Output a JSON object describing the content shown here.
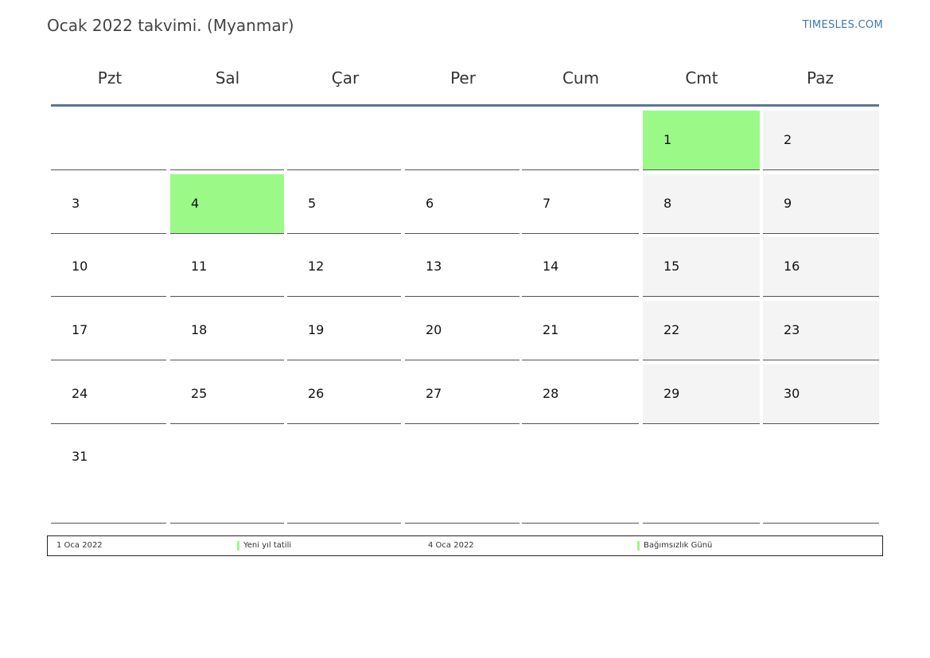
{
  "header": {
    "title": "Ocak 2022 takvimi. (Myanmar)",
    "brand": "TIMESLES.COM"
  },
  "colors": {
    "holiday": "#9bfa87",
    "weekend": "#f4f4f4",
    "header_rule": "#5b7596",
    "brand": "#3a78b5"
  },
  "weekdays": [
    "Pzt",
    "Sal",
    "Çar",
    "Per",
    "Cum",
    "Cmt",
    "Paz"
  ],
  "weeks": [
    [
      "",
      "",
      "",
      "",
      "",
      "1",
      "2"
    ],
    [
      "3",
      "4",
      "5",
      "6",
      "7",
      "8",
      "9"
    ],
    [
      "10",
      "11",
      "12",
      "13",
      "14",
      "15",
      "16"
    ],
    [
      "17",
      "18",
      "19",
      "20",
      "21",
      "22",
      "23"
    ],
    [
      "24",
      "25",
      "26",
      "27",
      "28",
      "29",
      "30"
    ],
    [
      "31",
      "",
      "",
      "",
      "",
      "",
      ""
    ]
  ],
  "holiday_days": [
    "1",
    "4"
  ],
  "legend": [
    {
      "date": "1 Oca 2022",
      "name": "Yeni yıl tatili"
    },
    {
      "date": "4 Oca 2022",
      "name": "Bağımsızlık Günü"
    }
  ]
}
